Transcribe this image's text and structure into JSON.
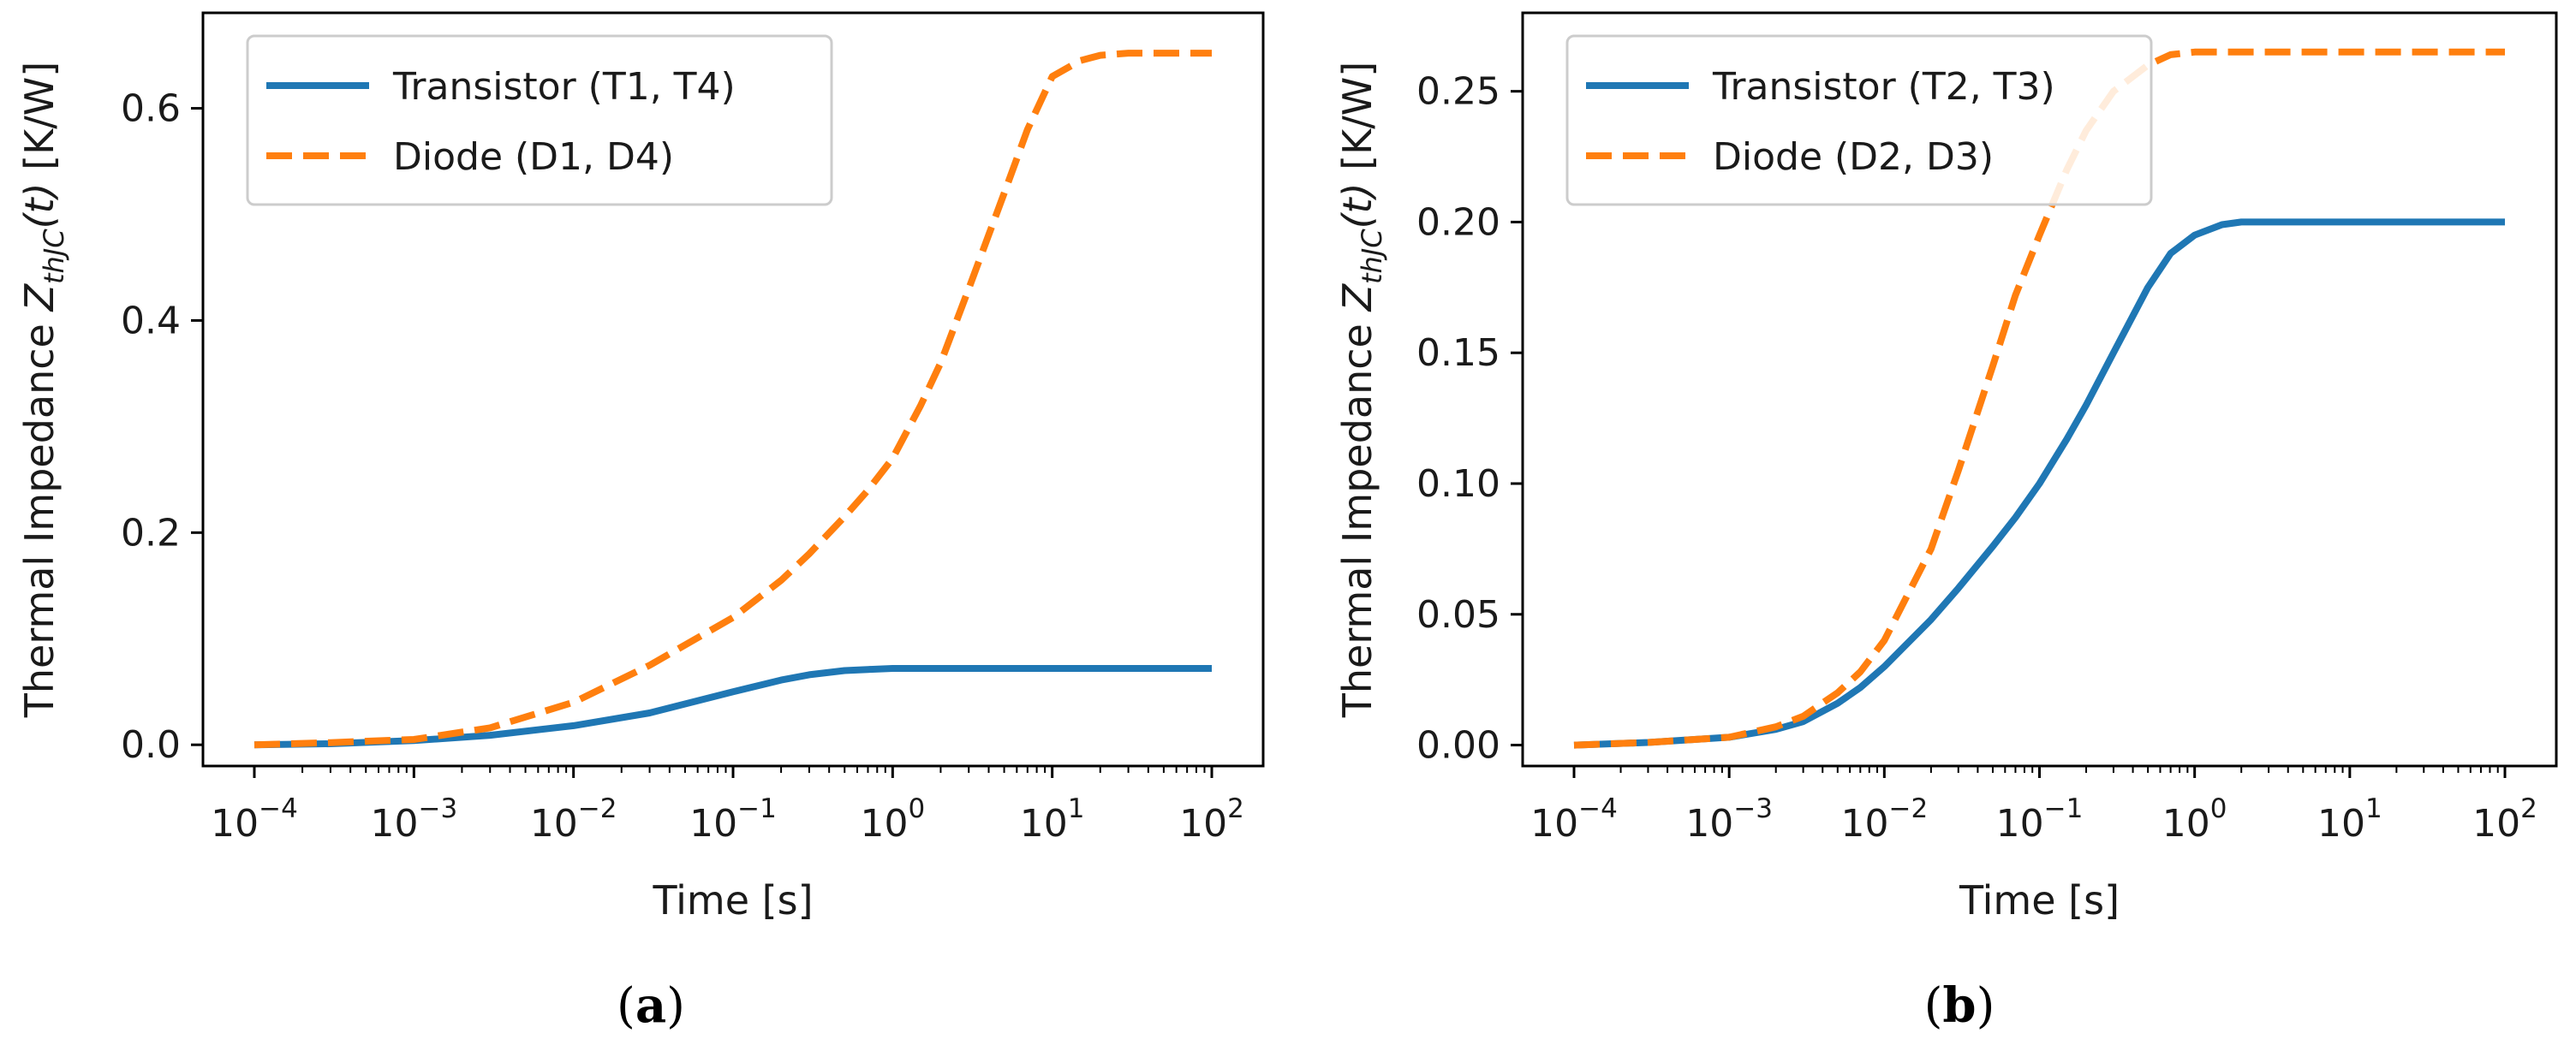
{
  "colors": {
    "series_solid": "#1f77b4",
    "series_dashed": "#ff7f0e",
    "axis": "#000000",
    "legend_border": "#cccccc"
  },
  "chart_data": [
    {
      "panel": "a",
      "caption_label": "a",
      "type": "line",
      "title": "",
      "xlabel": "Time [s]",
      "ylabel_prefix": "Thermal Impedance ",
      "ylabel_symbol": "Z",
      "ylabel_subscript": "thJC",
      "ylabel_arg": "(t)",
      "ylabel_unit": " [K/W]",
      "xscale": "log",
      "xlim": [
        0.0001,
        100
      ],
      "ylim": [
        -0.02,
        0.69
      ],
      "xticks": [
        {
          "value": 0.0001,
          "base": "10",
          "exp": "−4"
        },
        {
          "value": 0.001,
          "base": "10",
          "exp": "−3"
        },
        {
          "value": 0.01,
          "base": "10",
          "exp": "−2"
        },
        {
          "value": 0.1,
          "base": "10",
          "exp": "−1"
        },
        {
          "value": 1,
          "base": "10",
          "exp": "0"
        },
        {
          "value": 10,
          "base": "10",
          "exp": "1"
        },
        {
          "value": 100,
          "base": "10",
          "exp": "2"
        }
      ],
      "yticks": [
        {
          "value": 0.0,
          "label": "0.0"
        },
        {
          "value": 0.2,
          "label": "0.2"
        },
        {
          "value": 0.4,
          "label": "0.4"
        },
        {
          "value": 0.6,
          "label": "0.6"
        }
      ],
      "legend_position": "top-left",
      "grid": false,
      "series": [
        {
          "name": "Transistor (T1, T4)",
          "style": "solid",
          "x": [
            0.0001,
            0.0003,
            0.001,
            0.003,
            0.01,
            0.03,
            0.1,
            0.2,
            0.3,
            0.5,
            0.7,
            1,
            2,
            5,
            10,
            30,
            100
          ],
          "y": [
            0.0,
            0.001,
            0.004,
            0.009,
            0.018,
            0.03,
            0.05,
            0.061,
            0.066,
            0.07,
            0.071,
            0.072,
            0.072,
            0.072,
            0.072,
            0.072,
            0.072
          ]
        },
        {
          "name": "Diode (D1, D4)",
          "style": "dashed",
          "x": [
            0.0001,
            0.0003,
            0.001,
            0.003,
            0.01,
            0.03,
            0.1,
            0.2,
            0.3,
            0.5,
            0.7,
            1,
            1.5,
            2,
            3,
            5,
            7,
            10,
            15,
            20,
            30,
            100
          ],
          "y": [
            0.0,
            0.002,
            0.005,
            0.016,
            0.04,
            0.075,
            0.12,
            0.155,
            0.18,
            0.215,
            0.24,
            0.27,
            0.32,
            0.36,
            0.43,
            0.52,
            0.58,
            0.63,
            0.645,
            0.65,
            0.652,
            0.652
          ]
        }
      ]
    },
    {
      "panel": "b",
      "caption_label": "b",
      "type": "line",
      "title": "",
      "xlabel": "Time [s]",
      "ylabel_prefix": "Thermal Impedance ",
      "ylabel_symbol": "Z",
      "ylabel_subscript": "thJC",
      "ylabel_arg": "(t)",
      "ylabel_unit": " [K/W]",
      "xscale": "log",
      "xlim": [
        0.0001,
        100
      ],
      "ylim": [
        -0.008,
        0.28
      ],
      "xticks": [
        {
          "value": 0.0001,
          "base": "10",
          "exp": "−4"
        },
        {
          "value": 0.001,
          "base": "10",
          "exp": "−3"
        },
        {
          "value": 0.01,
          "base": "10",
          "exp": "−2"
        },
        {
          "value": 0.1,
          "base": "10",
          "exp": "−1"
        },
        {
          "value": 1,
          "base": "10",
          "exp": "0"
        },
        {
          "value": 10,
          "base": "10",
          "exp": "1"
        },
        {
          "value": 100,
          "base": "10",
          "exp": "2"
        }
      ],
      "yticks": [
        {
          "value": 0.0,
          "label": "0.00"
        },
        {
          "value": 0.05,
          "label": "0.05"
        },
        {
          "value": 0.1,
          "label": "0.10"
        },
        {
          "value": 0.15,
          "label": "0.15"
        },
        {
          "value": 0.2,
          "label": "0.20"
        },
        {
          "value": 0.25,
          "label": "0.25"
        }
      ],
      "legend_position": "top-left",
      "grid": false,
      "series": [
        {
          "name": "Transistor (T2, T3)",
          "style": "solid",
          "x": [
            0.0001,
            0.0003,
            0.001,
            0.002,
            0.003,
            0.005,
            0.007,
            0.01,
            0.02,
            0.03,
            0.05,
            0.07,
            0.1,
            0.15,
            0.2,
            0.3,
            0.5,
            0.7,
            1,
            1.5,
            2,
            5,
            10,
            100
          ],
          "y": [
            0.0,
            0.001,
            0.003,
            0.006,
            0.009,
            0.016,
            0.022,
            0.03,
            0.048,
            0.06,
            0.076,
            0.087,
            0.1,
            0.117,
            0.13,
            0.15,
            0.175,
            0.188,
            0.195,
            0.199,
            0.2,
            0.2,
            0.2,
            0.2
          ]
        },
        {
          "name": "Diode (D2, D3)",
          "style": "dashed",
          "x": [
            0.0001,
            0.0003,
            0.001,
            0.002,
            0.003,
            0.005,
            0.007,
            0.01,
            0.02,
            0.03,
            0.05,
            0.07,
            0.1,
            0.15,
            0.2,
            0.3,
            0.5,
            0.7,
            1,
            2,
            5,
            10,
            100
          ],
          "y": [
            0.0,
            0.001,
            0.003,
            0.007,
            0.011,
            0.02,
            0.028,
            0.04,
            0.075,
            0.105,
            0.145,
            0.172,
            0.195,
            0.22,
            0.235,
            0.25,
            0.26,
            0.264,
            0.265,
            0.265,
            0.265,
            0.265,
            0.265
          ]
        }
      ]
    }
  ]
}
